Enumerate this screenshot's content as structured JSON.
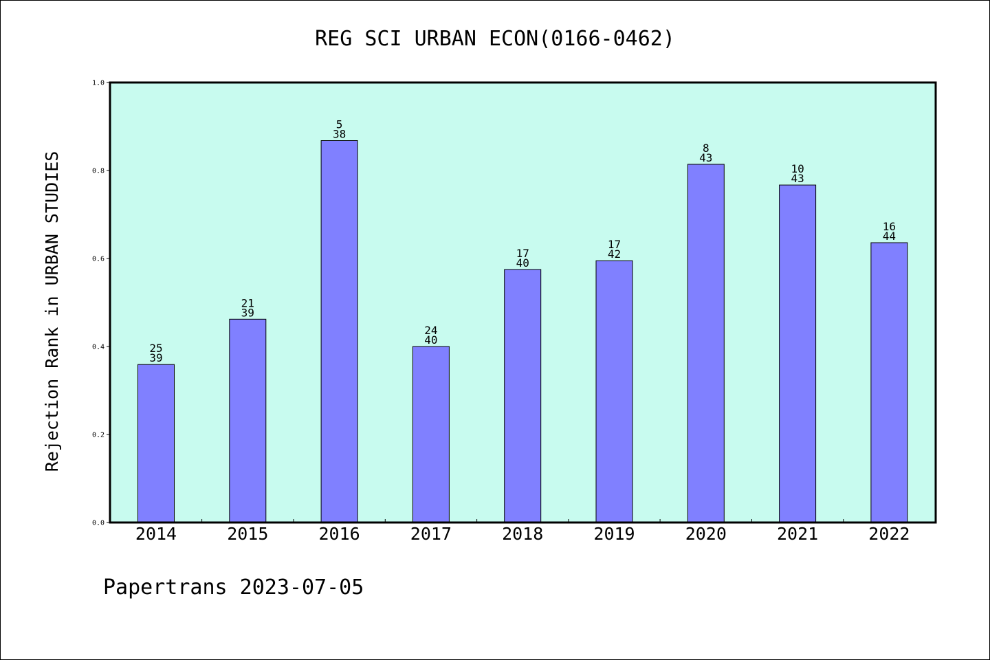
{
  "chart_data": {
    "type": "bar",
    "title": "REG SCI URBAN ECON(0166-0462)",
    "ylabel": "Rejection Rank in URBAN STUDIES",
    "xlabel": "",
    "ylim": [
      0,
      1.0
    ],
    "yticks": [
      "0.0",
      "0.2",
      "0.4",
      "0.6",
      "0.8",
      "1.0"
    ],
    "categories": [
      "2014",
      "2015",
      "2016",
      "2017",
      "2018",
      "2019",
      "2020",
      "2021",
      "2022"
    ],
    "values": [
      0.359,
      0.462,
      0.868,
      0.4,
      0.575,
      0.595,
      0.814,
      0.767,
      0.636
    ],
    "labels": [
      {
        "rank": "25",
        "total": "39"
      },
      {
        "rank": "21",
        "total": "39"
      },
      {
        "rank": "5",
        "total": "38"
      },
      {
        "rank": "24",
        "total": "40"
      },
      {
        "rank": "17",
        "total": "40"
      },
      {
        "rank": "17",
        "total": "42"
      },
      {
        "rank": "8",
        "total": "43"
      },
      {
        "rank": "10",
        "total": "43"
      },
      {
        "rank": "16",
        "total": "44"
      }
    ],
    "grid": false,
    "colors": {
      "plot_background": "#c8fbef",
      "bar_fill": "#8080ff",
      "bar_edge": "#000000"
    }
  },
  "footer": "Papertrans 2023-07-05"
}
